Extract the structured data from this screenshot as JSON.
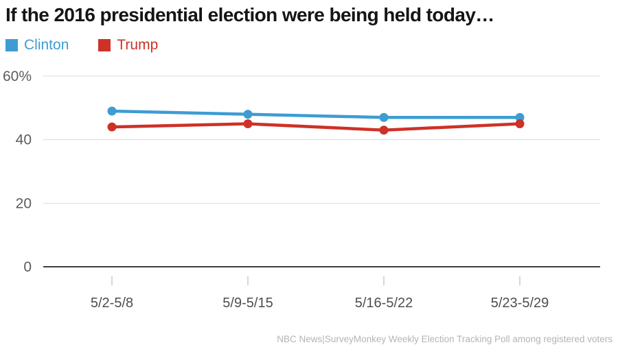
{
  "title": "If the 2016 presidential election were being held today…",
  "footer_source": "NBC News|SurveyMonkey Weekly Election Tracking Poll among registered voters",
  "colors": {
    "clinton_blue": "#3E9CD3",
    "trump_red": "#CE3127",
    "gridline": "#dcdcdc",
    "zero_axis": "#3e3e3e",
    "tick_mark": "#c9c9c9",
    "y_label_text": "#5c5c5c",
    "x_label_text": "#4d4d4d",
    "title_text": "#151515"
  },
  "chart_data": {
    "type": "line",
    "categories": [
      "5/2-5/8",
      "5/9-5/15",
      "5/16-5/22",
      "5/23-5/29"
    ],
    "series": [
      {
        "name": "Clinton",
        "color": "#3E9CD3",
        "values": [
          49,
          48,
          47,
          47
        ]
      },
      {
        "name": "Trump",
        "color": "#CE3127",
        "values": [
          44,
          45,
          43,
          45
        ]
      }
    ],
    "title": "If the 2016 presidential election were being held today…",
    "xlabel": "",
    "ylabel": "",
    "ylim": [
      0,
      60
    ],
    "yticks": [
      {
        "value": 0,
        "label": "0"
      },
      {
        "value": 20,
        "label": "20"
      },
      {
        "value": 40,
        "label": "40"
      },
      {
        "value": 60,
        "label": "60%"
      }
    ],
    "grid": true,
    "legend_position": "top-left"
  }
}
